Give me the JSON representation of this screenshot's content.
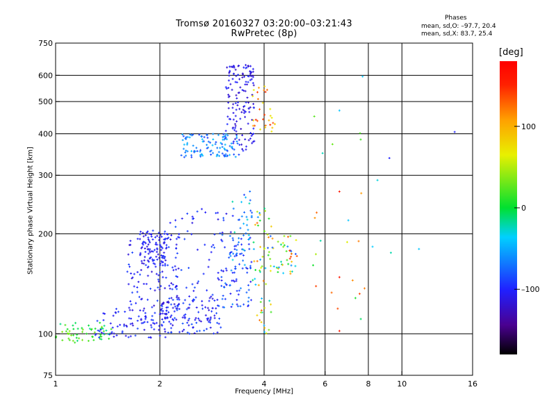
{
  "header": {
    "title_line1": "Tromsø 20160327 03:20:00–03:21:43",
    "title_line2": "RwPretec (8p)",
    "stats_title": "Phases",
    "stats_o": "mean, sd,O: –97.7, 20.4",
    "stats_x": "mean, sd,X:  83.7, 25.4"
  },
  "colorbar": {
    "unit_label": "[deg]",
    "ticks": [
      "100",
      "0",
      "–100"
    ],
    "tick_values": [
      100,
      0,
      -100
    ],
    "range": [
      -180,
      180
    ]
  },
  "chart_data": {
    "type": "scatter",
    "xlabel": "Frequency [MHz]",
    "ylabel": "Stationary phase Virtual Height [km]",
    "x_scale": "log",
    "y_scale": "log",
    "xlim": [
      1,
      16
    ],
    "ylim": [
      75,
      750
    ],
    "x_ticks": [
      1,
      2,
      4,
      6,
      8,
      10,
      16
    ],
    "x_tick_labels": [
      "1",
      "2",
      "4",
      "6",
      "8",
      "10",
      "16"
    ],
    "x_grid": [
      2,
      4,
      6,
      8,
      10
    ],
    "y_ticks": [
      75,
      100,
      200,
      300,
      400,
      500,
      600,
      750
    ],
    "y_tick_labels": [
      "75",
      "100",
      "200",
      "300",
      "400",
      "500",
      "600",
      "750"
    ],
    "y_grid": [
      100,
      200,
      300,
      400,
      500,
      600
    ],
    "grid": true,
    "colormap": "phase rainbow (black-purple-blue-cyan-green-yellow-orange-red)",
    "clusters": [
      {
        "x": [
          1.0,
          1.45
        ],
        "y": [
          94,
          108
        ],
        "phase": [
          -20,
          40
        ],
        "count": 60
      },
      {
        "x": [
          1.3,
          2.1
        ],
        "y": [
          97,
          120
        ],
        "phase": [
          -115,
          -85
        ],
        "count": 80
      },
      {
        "x": [
          1.75,
          2.1
        ],
        "y": [
          160,
          205
        ],
        "phase": [
          -120,
          -90
        ],
        "count": 90
      },
      {
        "x": [
          1.6,
          2.3
        ],
        "y": [
          105,
          200
        ],
        "phase": [
          -120,
          -85
        ],
        "count": 120
      },
      {
        "x": [
          2.0,
          3.0
        ],
        "y": [
          100,
          130
        ],
        "phase": [
          -120,
          -80
        ],
        "count": 110
      },
      {
        "x": [
          2.1,
          3.3
        ],
        "y": [
          110,
          240
        ],
        "phase": [
          -115,
          -80
        ],
        "count": 90
      },
      {
        "x": [
          3.0,
          3.7
        ],
        "y": [
          120,
          200
        ],
        "phase": [
          -110,
          -60
        ],
        "count": 80
      },
      {
        "x": [
          3.2,
          3.75
        ],
        "y": [
          160,
          270
        ],
        "phase": [
          -90,
          -20
        ],
        "count": 35
      },
      {
        "x": [
          2.3,
          3.4
        ],
        "y": [
          340,
          400
        ],
        "phase": [
          -95,
          -40
        ],
        "count": 110
      },
      {
        "x": [
          3.1,
          3.75
        ],
        "y": [
          355,
          650
        ],
        "phase": [
          -125,
          -95
        ],
        "count": 140
      },
      {
        "x": [
          3.7,
          4.2
        ],
        "y": [
          100,
          240
        ],
        "phase": [
          -60,
          130
        ],
        "count": 55
      },
      {
        "x": [
          4.1,
          5.0
        ],
        "y": [
          150,
          200
        ],
        "phase": [
          -90,
          150
        ],
        "count": 45
      },
      {
        "x": [
          3.7,
          4.3
        ],
        "y": [
          400,
          560
        ],
        "phase": [
          60,
          150
        ],
        "count": 30
      },
      {
        "x": [
          5.0,
          10.0
        ],
        "y": [
          110,
          480
        ],
        "phase": [
          -50,
          150
        ],
        "count": 22
      }
    ],
    "isolated_points": [
      {
        "x": 14.2,
        "y": 405,
        "phase": -100
      },
      {
        "x": 9.2,
        "y": 338,
        "phase": -100
      },
      {
        "x": 8.5,
        "y": 290,
        "phase": -30
      },
      {
        "x": 11.2,
        "y": 180,
        "phase": -40
      },
      {
        "x": 7.7,
        "y": 595,
        "phase": -40
      },
      {
        "x": 6.6,
        "y": 268,
        "phase": 160
      },
      {
        "x": 6.6,
        "y": 102,
        "phase": 160
      },
      {
        "x": 6.6,
        "y": 470,
        "phase": -40
      },
      {
        "x": 7.5,
        "y": 190,
        "phase": 120
      },
      {
        "x": 7.8,
        "y": 137,
        "phase": 120
      },
      {
        "x": 6.6,
        "y": 148,
        "phase": 160
      }
    ]
  }
}
